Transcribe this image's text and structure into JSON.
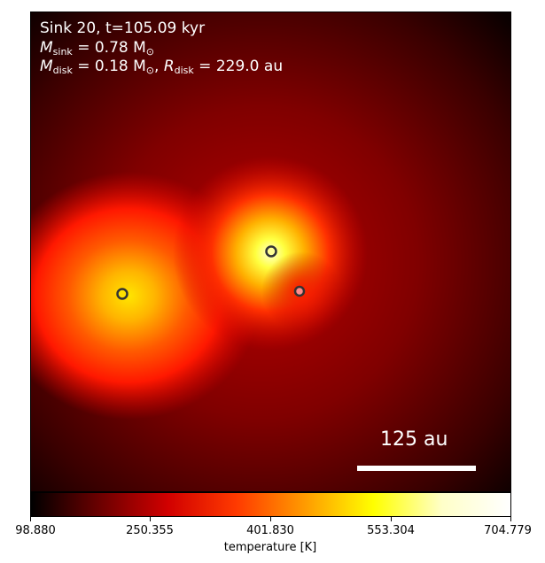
{
  "annotation": {
    "line1": "Sink 20, t=105.09 kyr",
    "msink_symbol": "M",
    "msink_sub": "sink",
    "msink_value": " = 0.78 M",
    "msink_unit_sub": "⊙",
    "mdisk_symbol": "M",
    "mdisk_sub": "disk",
    "mdisk_value": " = 0.18 M",
    "mdisk_unit_sub": "⊙",
    "rdisk_sep": ", ",
    "rdisk_symbol": "R",
    "rdisk_sub": "disk",
    "rdisk_value": " = 229.0 au"
  },
  "scale_bar": {
    "label": "125 au"
  },
  "colorbar": {
    "label": "temperature [K]",
    "ticks": [
      "98.880",
      "250.355",
      "401.830",
      "553.304",
      "704.779"
    ],
    "colors": [
      "#000000",
      "#6b0000",
      "#d10000",
      "#ff3a00",
      "#ff9b00",
      "#ffff00",
      "#ffffc8",
      "#ffffff"
    ]
  },
  "sinks": [
    {
      "name": "sink-left",
      "fill": "#ffe100"
    },
    {
      "name": "sink-center",
      "fill": "#ffff96"
    },
    {
      "name": "sink-right",
      "fill": "#ff8c8c"
    }
  ]
}
